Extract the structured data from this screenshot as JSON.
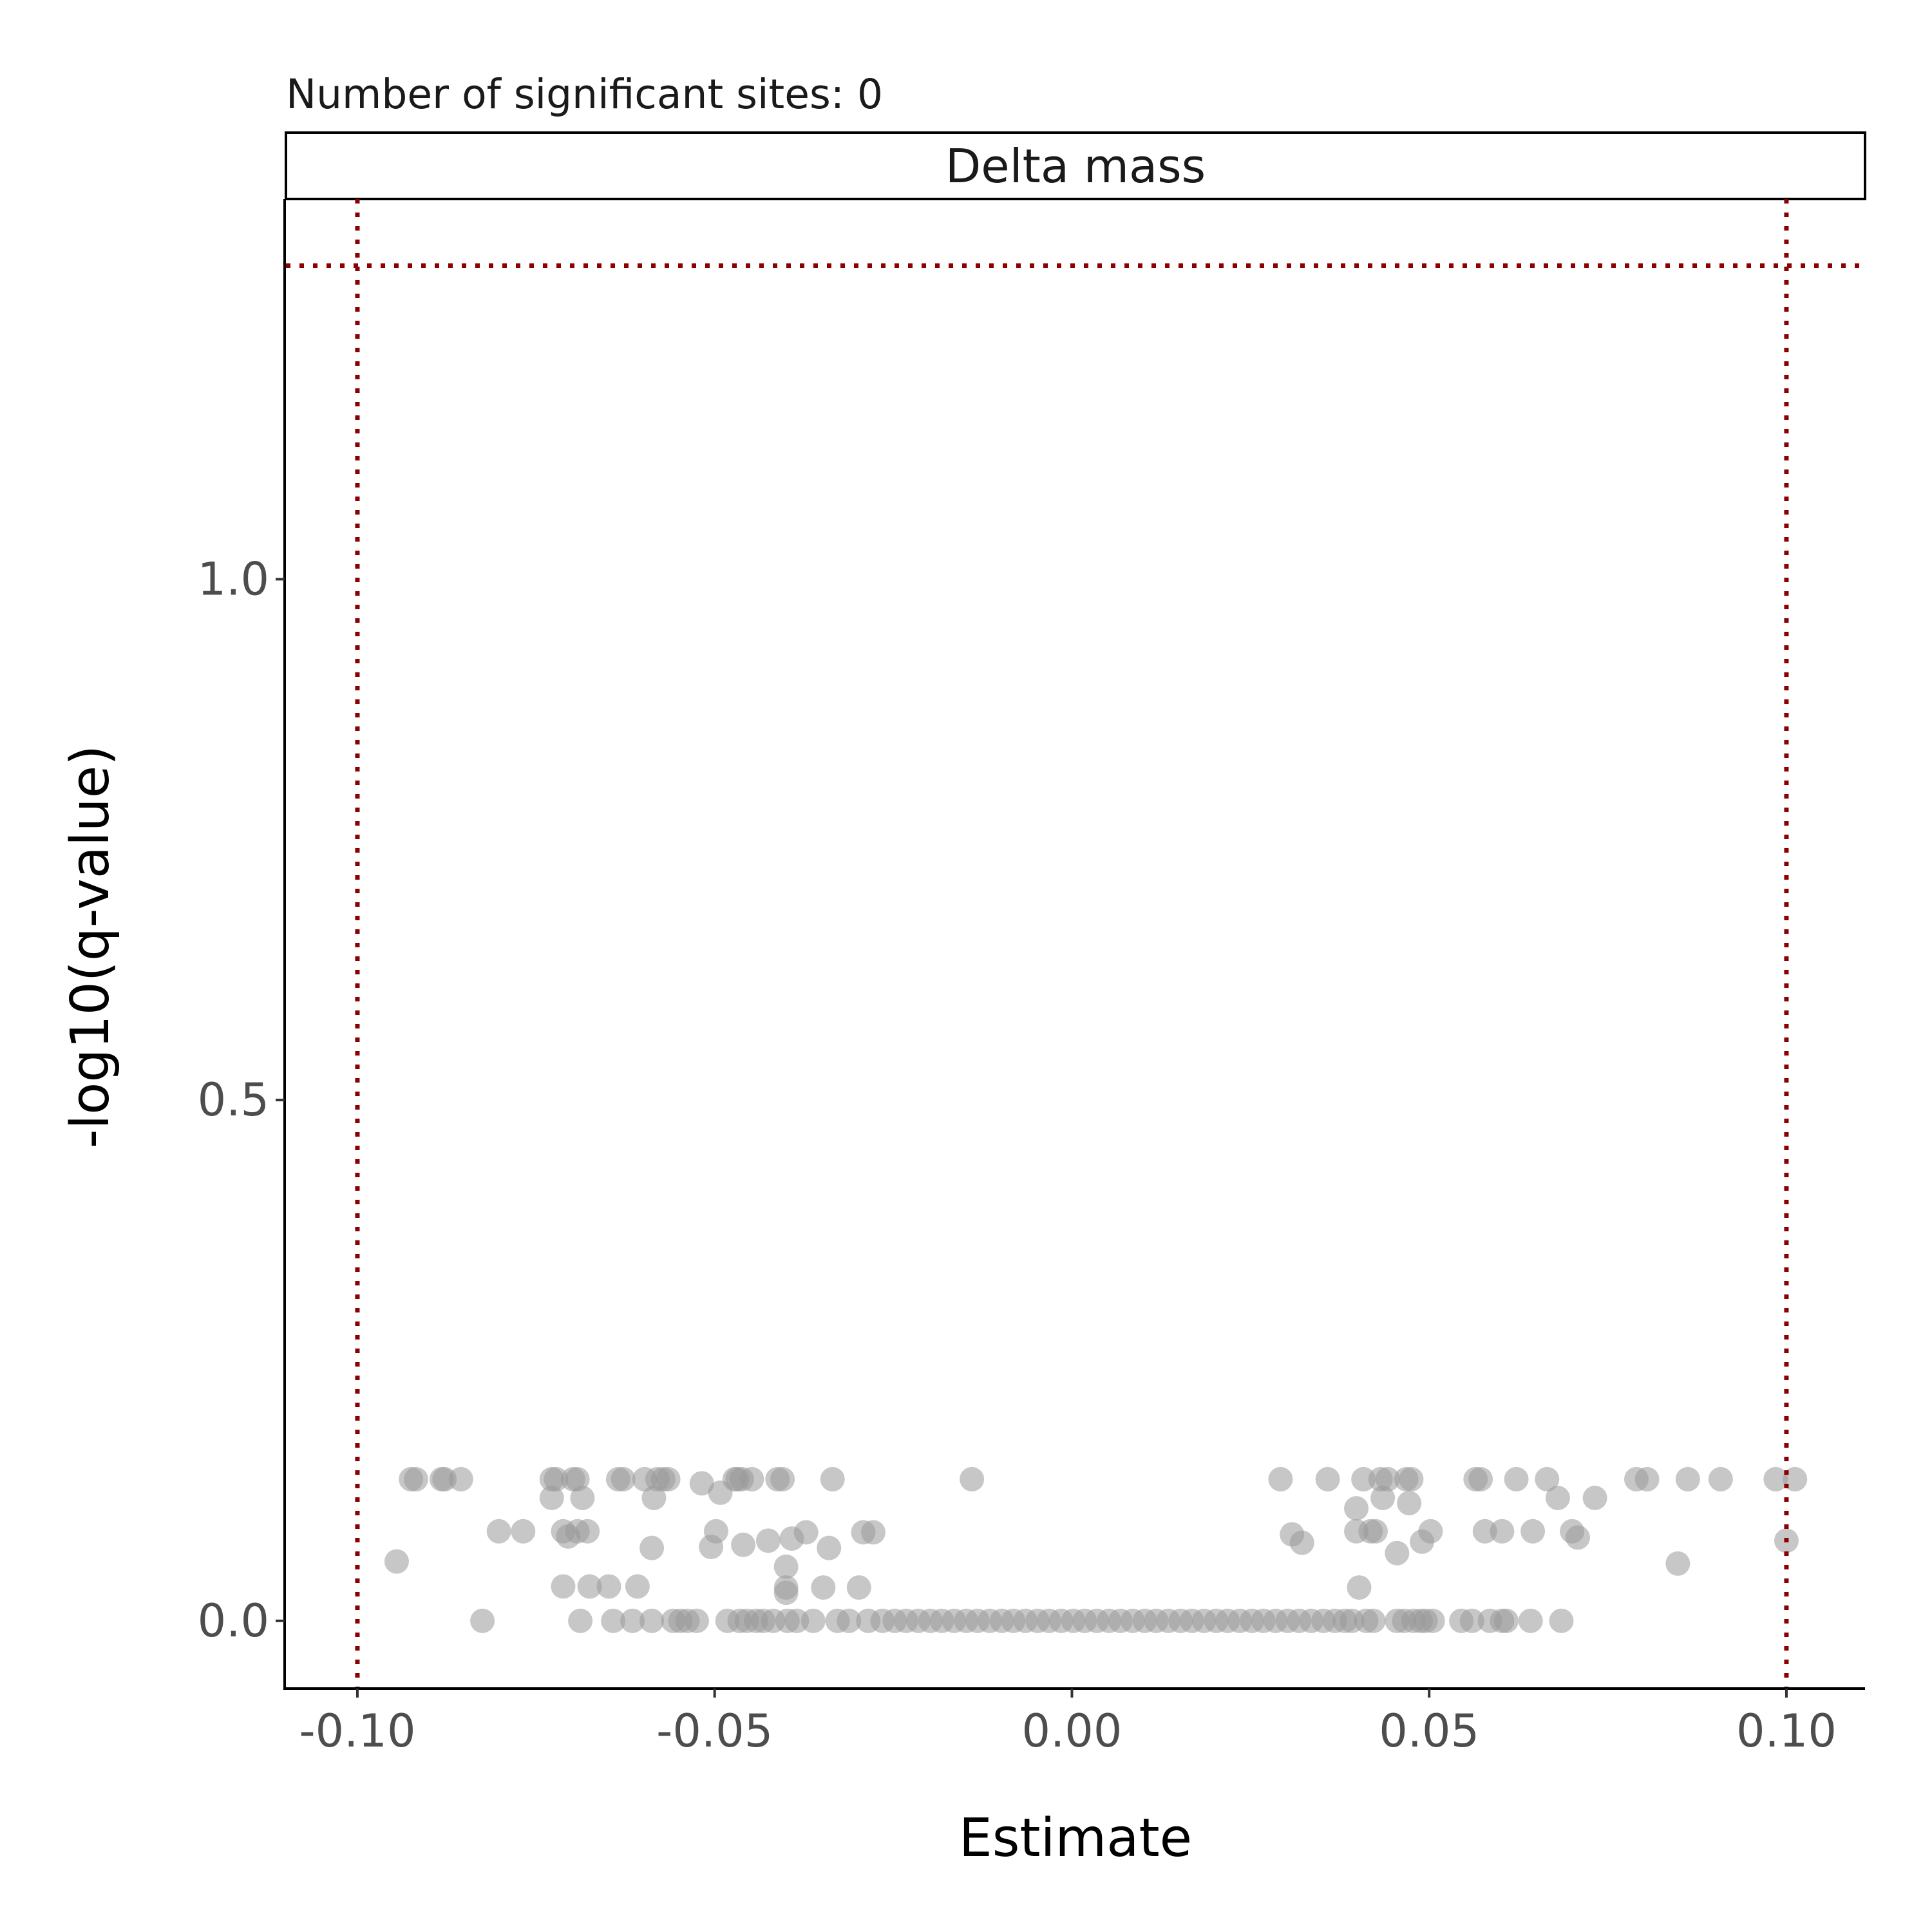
{
  "chart_data": {
    "type": "scatter",
    "title": "Number of significant sites: 0",
    "strip_label": "Delta mass",
    "xlabel": "Estimate",
    "ylabel": "-log10(q-value)",
    "xlim": [
      -0.11,
      0.111
    ],
    "ylim": [
      -0.065,
      1.365
    ],
    "x_ticks": [
      -0.1,
      -0.05,
      0.0,
      0.05,
      0.1
    ],
    "x_tick_labels": [
      "-0.10",
      "-0.05",
      "0.00",
      "0.05",
      "0.10"
    ],
    "y_ticks": [
      0.0,
      0.5,
      1.0
    ],
    "y_tick_labels": [
      "0.0",
      "0.5",
      "1.0"
    ],
    "grid": false,
    "point_color": "#999999",
    "reference_line_color": "#8b0000",
    "reference_lines": {
      "vertical_x": [
        -0.1,
        0.1
      ],
      "horizontal_y": 1.301
    },
    "points": [
      {
        "x": -0.0945,
        "y": 0.057
      },
      {
        "x": -0.0925,
        "y": 0.136
      },
      {
        "x": -0.0918,
        "y": 0.136
      },
      {
        "x": -0.0882,
        "y": 0.136
      },
      {
        "x": -0.0878,
        "y": 0.136
      },
      {
        "x": -0.0855,
        "y": 0.136
      },
      {
        "x": -0.0825,
        "y": 0.0
      },
      {
        "x": -0.0802,
        "y": 0.086
      },
      {
        "x": -0.0768,
        "y": 0.086
      },
      {
        "x": -0.0728,
        "y": 0.136
      },
      {
        "x": -0.0722,
        "y": 0.136
      },
      {
        "x": -0.0728,
        "y": 0.118
      },
      {
        "x": -0.0712,
        "y": 0.033
      },
      {
        "x": -0.0712,
        "y": 0.086
      },
      {
        "x": -0.0705,
        "y": 0.081
      },
      {
        "x": -0.0698,
        "y": 0.136
      },
      {
        "x": -0.0692,
        "y": 0.136
      },
      {
        "x": -0.0692,
        "y": 0.086
      },
      {
        "x": -0.0688,
        "y": 0.0
      },
      {
        "x": -0.0685,
        "y": 0.118
      },
      {
        "x": -0.0678,
        "y": 0.086
      },
      {
        "x": -0.0675,
        "y": 0.033
      },
      {
        "x": -0.0648,
        "y": 0.033
      },
      {
        "x": -0.0642,
        "y": 0.0
      },
      {
        "x": -0.0635,
        "y": 0.136
      },
      {
        "x": -0.0628,
        "y": 0.136
      },
      {
        "x": -0.0615,
        "y": 0.0
      },
      {
        "x": -0.0608,
        "y": 0.033
      },
      {
        "x": -0.0598,
        "y": 0.136
      },
      {
        "x": -0.0588,
        "y": 0.0
      },
      {
        "x": -0.0588,
        "y": 0.07
      },
      {
        "x": -0.0585,
        "y": 0.118
      },
      {
        "x": -0.058,
        "y": 0.136
      },
      {
        "x": -0.0572,
        "y": 0.136
      },
      {
        "x": -0.0565,
        "y": 0.136
      },
      {
        "x": -0.0558,
        "y": 0.0
      },
      {
        "x": -0.0548,
        "y": 0.0
      },
      {
        "x": -0.0538,
        "y": 0.0
      },
      {
        "x": -0.0525,
        "y": 0.0
      },
      {
        "x": -0.0518,
        "y": 0.132
      },
      {
        "x": -0.0505,
        "y": 0.071
      },
      {
        "x": -0.0498,
        "y": 0.086
      },
      {
        "x": -0.0492,
        "y": 0.123
      },
      {
        "x": -0.0482,
        "y": 0.0
      },
      {
        "x": -0.0472,
        "y": 0.136
      },
      {
        "x": -0.0468,
        "y": 0.136
      },
      {
        "x": -0.0465,
        "y": 0.0
      },
      {
        "x": -0.0462,
        "y": 0.136
      },
      {
        "x": -0.046,
        "y": 0.073
      },
      {
        "x": -0.0455,
        "y": 0.0
      },
      {
        "x": -0.0448,
        "y": 0.136
      },
      {
        "x": -0.0442,
        "y": 0.0
      },
      {
        "x": -0.0432,
        "y": 0.0
      },
      {
        "x": -0.0425,
        "y": 0.077
      },
      {
        "x": -0.0418,
        "y": 0.0
      },
      {
        "x": -0.0412,
        "y": 0.136
      },
      {
        "x": -0.0405,
        "y": 0.136
      },
      {
        "x": -0.04,
        "y": 0.052
      },
      {
        "x": -0.04,
        "y": 0.032
      },
      {
        "x": -0.04,
        "y": 0.027
      },
      {
        "x": -0.0398,
        "y": 0.0
      },
      {
        "x": -0.0392,
        "y": 0.079
      },
      {
        "x": -0.0385,
        "y": 0.0
      },
      {
        "x": -0.0372,
        "y": 0.085
      },
      {
        "x": -0.0362,
        "y": 0.0
      },
      {
        "x": -0.0348,
        "y": 0.032
      },
      {
        "x": -0.034,
        "y": 0.07
      },
      {
        "x": -0.0335,
        "y": 0.136
      },
      {
        "x": -0.0328,
        "y": 0.0
      },
      {
        "x": -0.0312,
        "y": 0.0
      },
      {
        "x": -0.0298,
        "y": 0.032
      },
      {
        "x": -0.0292,
        "y": 0.085
      },
      {
        "x": -0.0285,
        "y": 0.0
      },
      {
        "x": -0.0278,
        "y": 0.085
      },
      {
        "x": -0.0265,
        "y": 0.0
      },
      {
        "x": -0.0248,
        "y": 0.0
      },
      {
        "x": -0.0232,
        "y": 0.0
      },
      {
        "x": -0.0215,
        "y": 0.0
      },
      {
        "x": -0.0198,
        "y": 0.0
      },
      {
        "x": -0.0182,
        "y": 0.0
      },
      {
        "x": -0.0165,
        "y": 0.0
      },
      {
        "x": -0.0148,
        "y": 0.0
      },
      {
        "x": -0.014,
        "y": 0.136
      },
      {
        "x": -0.0132,
        "y": 0.0
      },
      {
        "x": -0.0115,
        "y": 0.0
      },
      {
        "x": -0.0098,
        "y": 0.0
      },
      {
        "x": -0.0082,
        "y": 0.0
      },
      {
        "x": -0.0065,
        "y": 0.0
      },
      {
        "x": -0.0048,
        "y": 0.0
      },
      {
        "x": -0.0032,
        "y": 0.0
      },
      {
        "x": -0.0015,
        "y": 0.0
      },
      {
        "x": 0.0002,
        "y": 0.0
      },
      {
        "x": 0.0018,
        "y": 0.0
      },
      {
        "x": 0.0035,
        "y": 0.0
      },
      {
        "x": 0.0052,
        "y": 0.0
      },
      {
        "x": 0.0068,
        "y": 0.0
      },
      {
        "x": 0.0085,
        "y": 0.0
      },
      {
        "x": 0.0102,
        "y": 0.0
      },
      {
        "x": 0.0118,
        "y": 0.0
      },
      {
        "x": 0.0135,
        "y": 0.0
      },
      {
        "x": 0.0152,
        "y": 0.0
      },
      {
        "x": 0.0168,
        "y": 0.0
      },
      {
        "x": 0.0185,
        "y": 0.0
      },
      {
        "x": 0.0202,
        "y": 0.0
      },
      {
        "x": 0.0218,
        "y": 0.0
      },
      {
        "x": 0.0235,
        "y": 0.0
      },
      {
        "x": 0.0252,
        "y": 0.0
      },
      {
        "x": 0.0268,
        "y": 0.0
      },
      {
        "x": 0.0285,
        "y": 0.0
      },
      {
        "x": 0.0292,
        "y": 0.136
      },
      {
        "x": 0.0302,
        "y": 0.0
      },
      {
        "x": 0.0308,
        "y": 0.083
      },
      {
        "x": 0.0318,
        "y": 0.0
      },
      {
        "x": 0.0322,
        "y": 0.075
      },
      {
        "x": 0.0335,
        "y": 0.0
      },
      {
        "x": 0.0352,
        "y": 0.0
      },
      {
        "x": 0.0358,
        "y": 0.136
      },
      {
        "x": 0.0368,
        "y": 0.0
      },
      {
        "x": 0.0382,
        "y": 0.0
      },
      {
        "x": 0.0392,
        "y": 0.0
      },
      {
        "x": 0.0398,
        "y": 0.108
      },
      {
        "x": 0.0398,
        "y": 0.086
      },
      {
        "x": 0.0402,
        "y": 0.032
      },
      {
        "x": 0.0408,
        "y": 0.136
      },
      {
        "x": 0.0412,
        "y": 0.0
      },
      {
        "x": 0.0418,
        "y": 0.086
      },
      {
        "x": 0.0422,
        "y": 0.0
      },
      {
        "x": 0.0425,
        "y": 0.086
      },
      {
        "x": 0.0432,
        "y": 0.136
      },
      {
        "x": 0.0435,
        "y": 0.118
      },
      {
        "x": 0.0442,
        "y": 0.136
      },
      {
        "x": 0.0455,
        "y": 0.0
      },
      {
        "x": 0.0455,
        "y": 0.065
      },
      {
        "x": 0.0465,
        "y": 0.0
      },
      {
        "x": 0.0468,
        "y": 0.136
      },
      {
        "x": 0.0472,
        "y": 0.113
      },
      {
        "x": 0.0475,
        "y": 0.136
      },
      {
        "x": 0.0478,
        "y": 0.0
      },
      {
        "x": 0.0488,
        "y": 0.0
      },
      {
        "x": 0.049,
        "y": 0.076
      },
      {
        "x": 0.0495,
        "y": 0.0
      },
      {
        "x": 0.0502,
        "y": 0.086
      },
      {
        "x": 0.0505,
        "y": 0.0
      },
      {
        "x": 0.0545,
        "y": 0.0
      },
      {
        "x": 0.056,
        "y": 0.0
      },
      {
        "x": 0.0565,
        "y": 0.136
      },
      {
        "x": 0.0572,
        "y": 0.136
      },
      {
        "x": 0.0578,
        "y": 0.086
      },
      {
        "x": 0.0585,
        "y": 0.0
      },
      {
        "x": 0.0602,
        "y": 0.0
      },
      {
        "x": 0.0602,
        "y": 0.086
      },
      {
        "x": 0.0608,
        "y": 0.0
      },
      {
        "x": 0.0622,
        "y": 0.136
      },
      {
        "x": 0.0642,
        "y": 0.0
      },
      {
        "x": 0.0645,
        "y": 0.086
      },
      {
        "x": 0.0665,
        "y": 0.136
      },
      {
        "x": 0.068,
        "y": 0.118
      },
      {
        "x": 0.0685,
        "y": 0.0
      },
      {
        "x": 0.07,
        "y": 0.086
      },
      {
        "x": 0.0708,
        "y": 0.08
      },
      {
        "x": 0.0732,
        "y": 0.118
      },
      {
        "x": 0.079,
        "y": 0.136
      },
      {
        "x": 0.0805,
        "y": 0.136
      },
      {
        "x": 0.0848,
        "y": 0.055
      },
      {
        "x": 0.0862,
        "y": 0.136
      },
      {
        "x": 0.0908,
        "y": 0.136
      },
      {
        "x": 0.0985,
        "y": 0.136
      },
      {
        "x": 0.1,
        "y": 0.077
      },
      {
        "x": 0.1012,
        "y": 0.136
      }
    ]
  }
}
